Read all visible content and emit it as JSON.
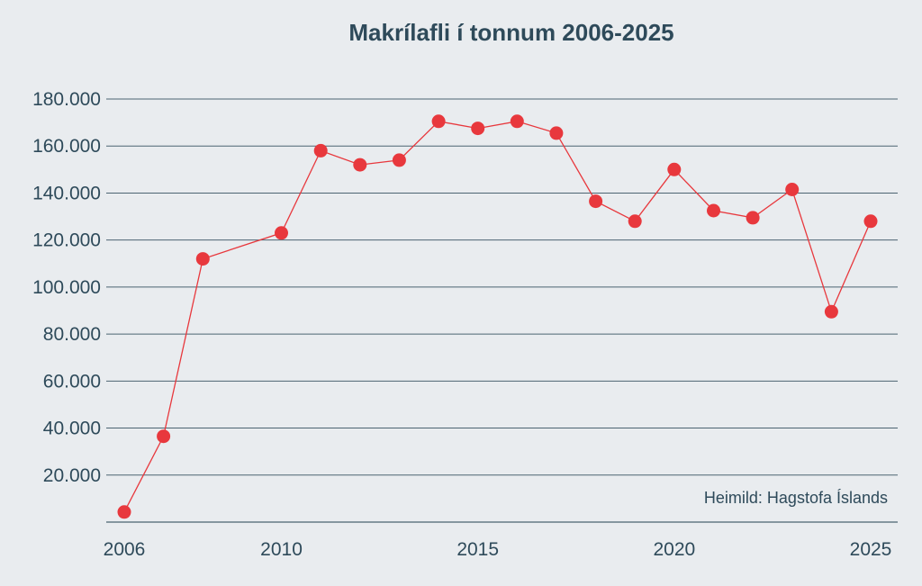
{
  "chart_data": {
    "type": "line",
    "title": "Makrílafli í tonnum 2006-2025",
    "xlabel": "",
    "ylabel": "",
    "source_note": "Heimild: Hagstofa Íslands",
    "x_ticks": [
      "2006",
      "2010",
      "2015",
      "2020",
      "2025"
    ],
    "y_ticks": [
      "20.000",
      "40.000",
      "60.000",
      "80.000",
      "100.000",
      "120.000",
      "140.000",
      "160.000",
      "180.000"
    ],
    "ylim": [
      0,
      180000
    ],
    "xlim": [
      2006,
      2025
    ],
    "grid": true,
    "legend": "none",
    "series": [
      {
        "color": "#e8383d",
        "x": [
          2006,
          2007,
          2008,
          2010,
          2011,
          2012,
          2013,
          2014,
          2015,
          2016,
          2017,
          2018,
          2019,
          2020,
          2021,
          2022,
          2023,
          2024,
          2025
        ],
        "values": [
          4300,
          36500,
          112000,
          123000,
          158000,
          152000,
          154000,
          170500,
          167500,
          170500,
          165500,
          136500,
          128000,
          150000,
          132500,
          129500,
          141500,
          89500,
          128000
        ]
      }
    ]
  }
}
